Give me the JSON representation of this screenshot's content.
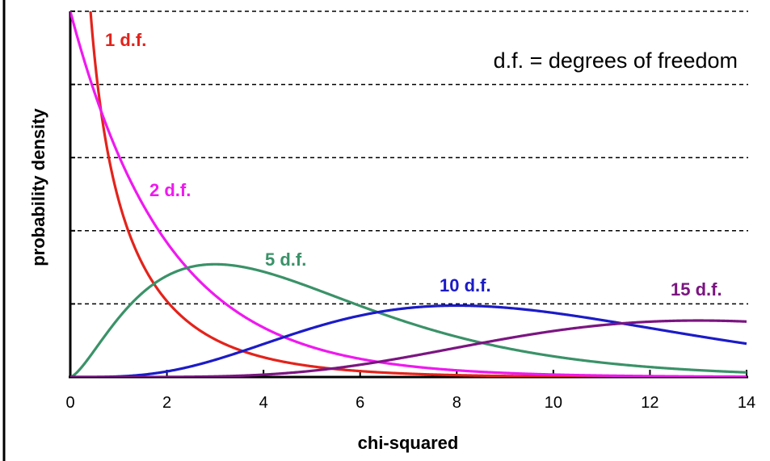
{
  "chart_data": {
    "type": "line",
    "xlabel": "chi-squared",
    "ylabel": "probability density",
    "annotation": "d.f. = degrees of freedom",
    "xlim": [
      0,
      14
    ],
    "ylim": [
      0,
      0.5
    ],
    "x_ticks": [
      "0",
      "2",
      "4",
      "6",
      "8",
      "10",
      "12",
      "14"
    ],
    "y_ticks_shown": false,
    "grid": "horizontal dashed",
    "series": [
      {
        "name": "1 d.f.",
        "df": 1,
        "color": "#e3231b"
      },
      {
        "name": "2 d.f.",
        "df": 2,
        "color": "#ef19ef"
      },
      {
        "name": "5 d.f.",
        "df": 5,
        "color": "#3a9268"
      },
      {
        "name": "10 d.f.",
        "df": 10,
        "color": "#1b1bc8"
      },
      {
        "name": "15 d.f.",
        "df": 15,
        "color": "#7b1581"
      }
    ]
  }
}
